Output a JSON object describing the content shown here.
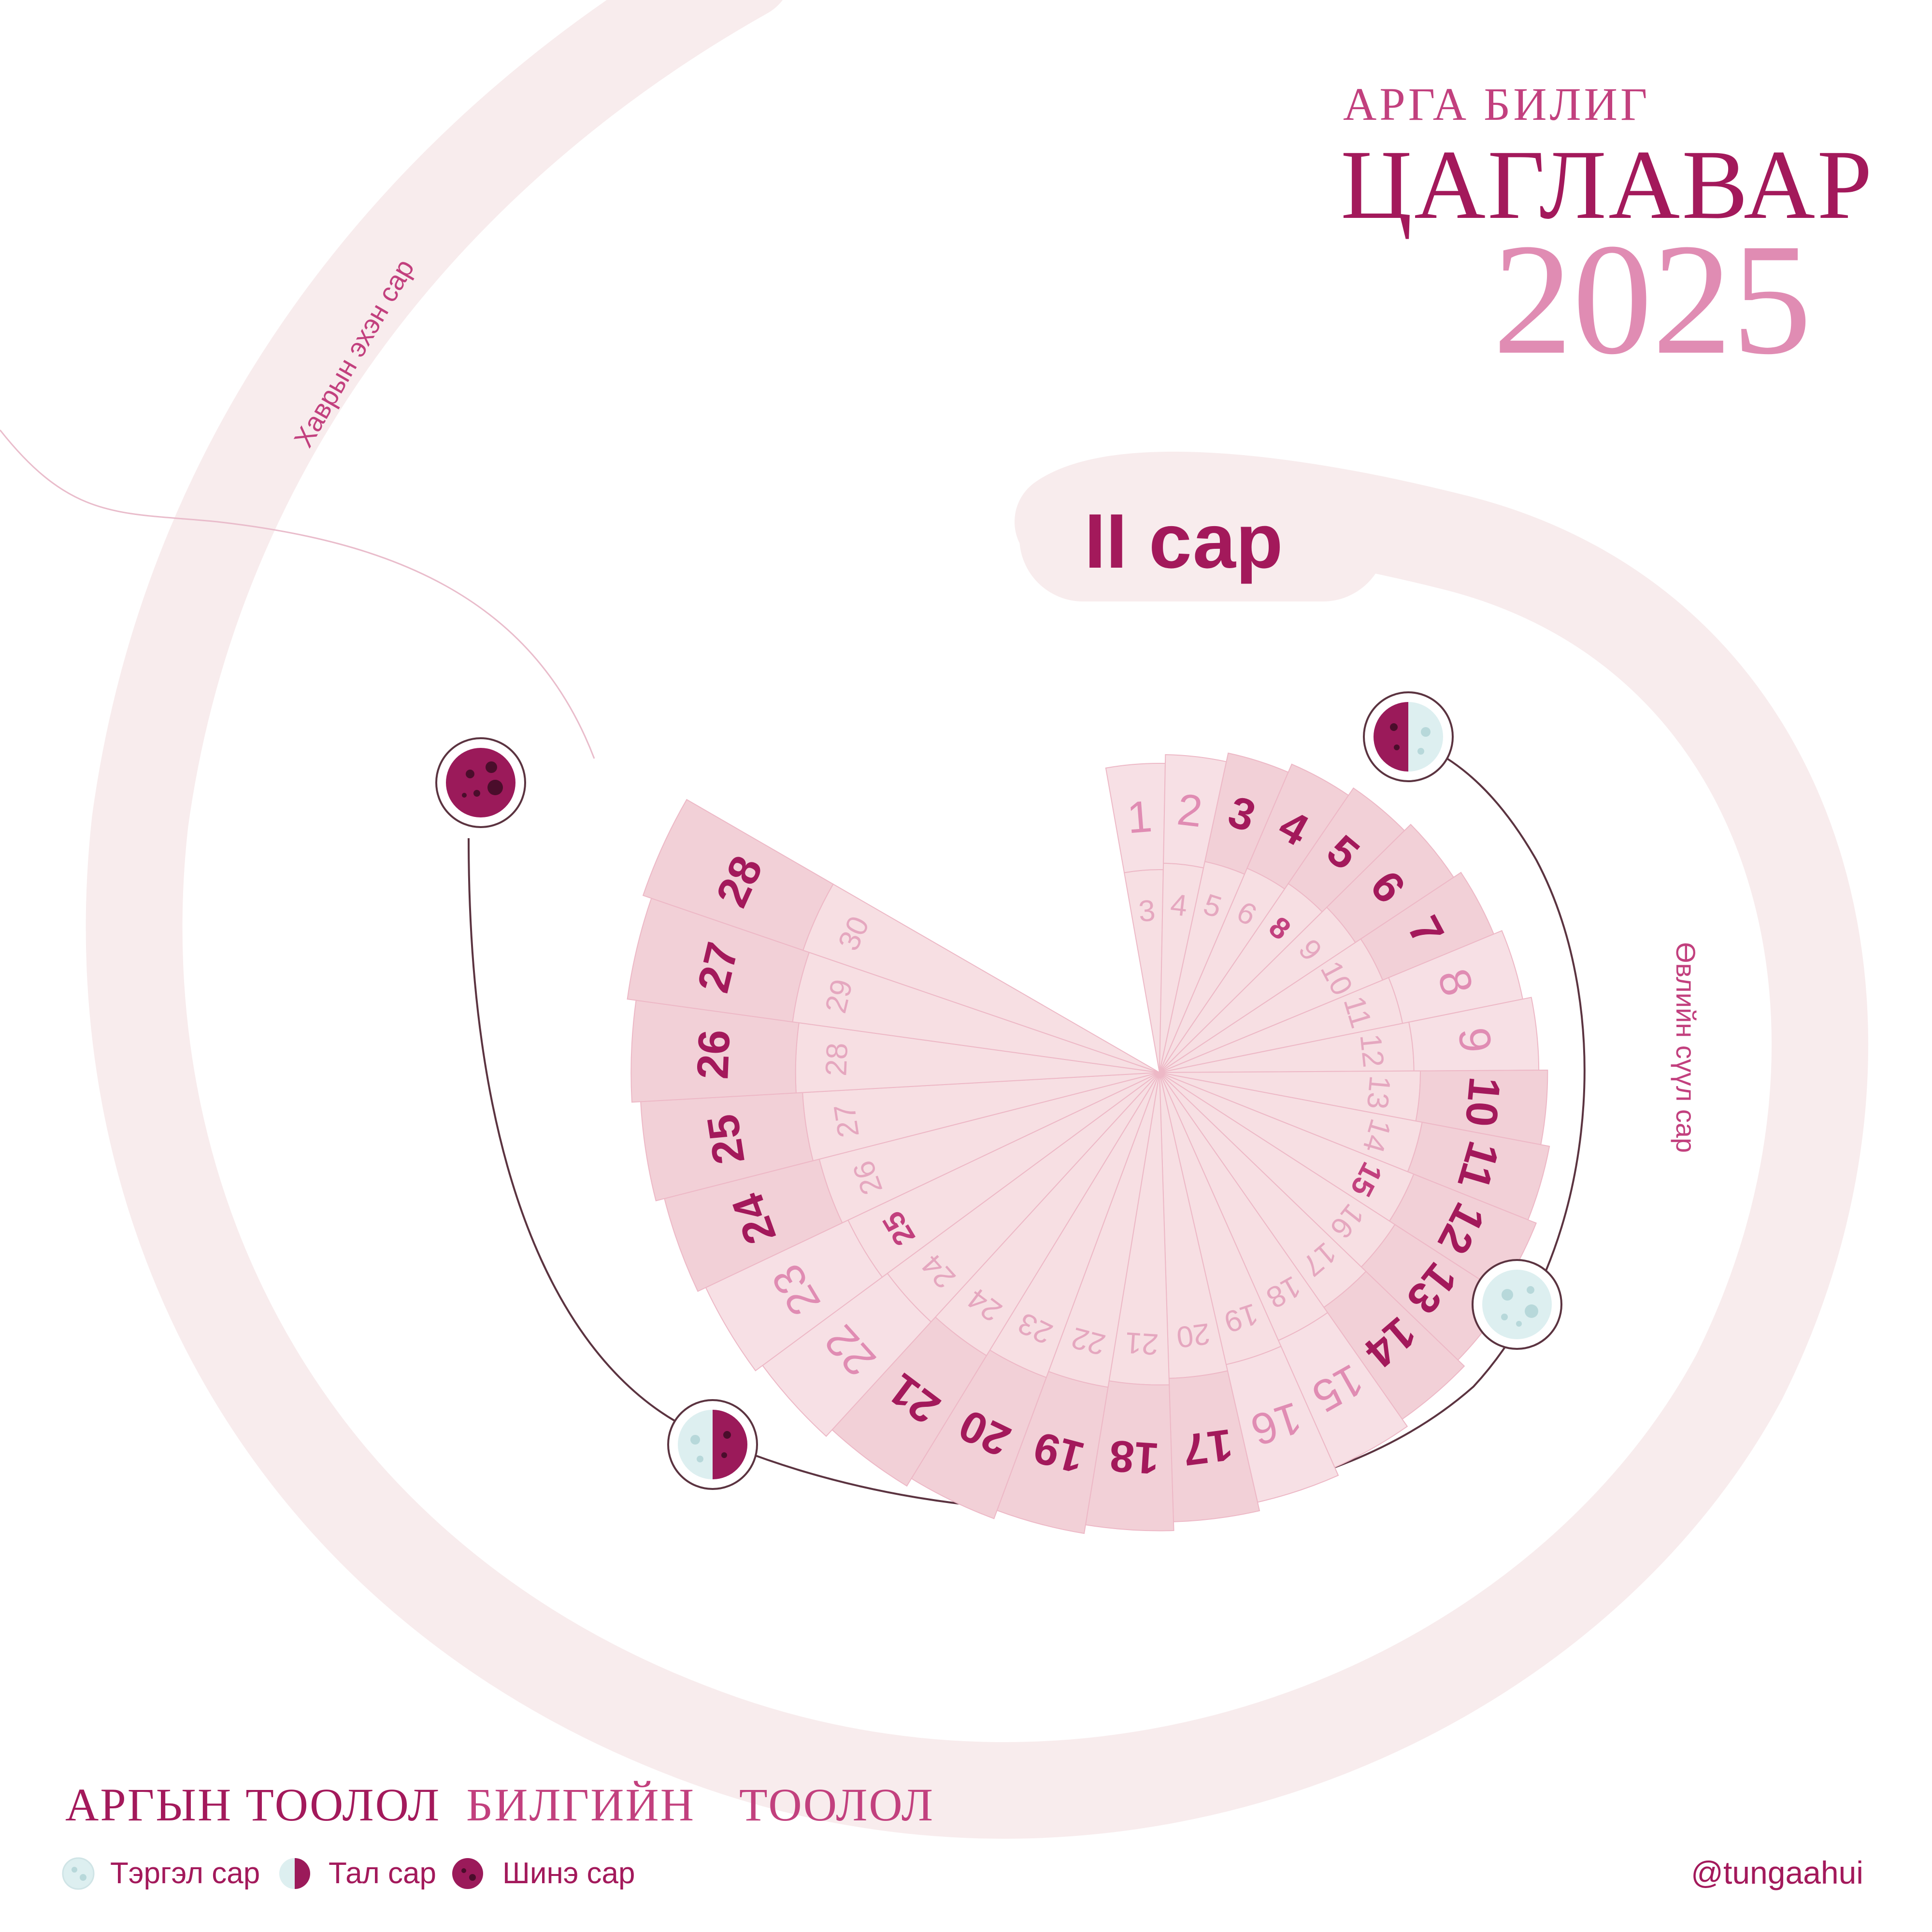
{
  "header": {
    "subtitle": "АРГА БИЛИГ",
    "title": "ЦАГЛАВАР",
    "year": "2025"
  },
  "month": {
    "label": "II сар",
    "previous_month_label": "Хаврын эхэн сар",
    "next_month_label": "Өвлийн сүүл сар"
  },
  "calendar": {
    "outer_days": [
      "1",
      "2",
      "3",
      "4",
      "5",
      "6",
      "7",
      "8",
      "9",
      "10",
      "11",
      "12",
      "13",
      "14",
      "15",
      "16",
      "17",
      "18",
      "19",
      "20",
      "21",
      "22",
      "23",
      "24",
      "25",
      "26",
      "27",
      "28"
    ],
    "outer_bold": [
      false,
      false,
      true,
      true,
      true,
      true,
      true,
      false,
      false,
      true,
      true,
      true,
      true,
      true,
      false,
      false,
      true,
      true,
      true,
      true,
      true,
      false,
      false,
      true,
      true,
      true,
      true,
      true
    ],
    "inner_days": [
      "3",
      "4",
      "5",
      "6",
      "8",
      "9",
      "10",
      "11",
      "12",
      "13",
      "14",
      "15",
      "16",
      "17",
      "18",
      "19",
      "20",
      "21",
      "22",
      "23",
      "24",
      "24",
      "25",
      "26",
      "27",
      "28",
      "29",
      "30"
    ],
    "inner_bold": [
      false,
      false,
      false,
      false,
      true,
      false,
      false,
      false,
      false,
      false,
      false,
      true,
      false,
      false,
      false,
      false,
      false,
      false,
      false,
      false,
      false,
      false,
      true,
      false,
      false,
      false,
      false,
      false
    ]
  },
  "moon_phases": [
    {
      "name": "new-moon",
      "icon": "new-moon-icon"
    },
    {
      "name": "first-quarter",
      "icon": "half-moon-icon"
    },
    {
      "name": "full-moon",
      "icon": "full-moon-icon"
    },
    {
      "name": "last-quarter",
      "icon": "half-moon-icon"
    }
  ],
  "footer": {
    "arga_label": "АРГЫН ТООЛОЛ",
    "bilig_label": "БИЛГИЙН",
    "tooloo_label": "ТООЛОЛ",
    "handle": "@tungaahui"
  },
  "legend": [
    {
      "label": "Тэргэл сар",
      "icon": "full-moon-icon"
    },
    {
      "label": "Тал сар",
      "icon": "half-moon-icon"
    },
    {
      "label": "Шинэ сар",
      "icon": "new-moon-icon"
    }
  ],
  "colors": {
    "accent": "#a3195b",
    "accent_light": "#e08cb3",
    "band": "#f8eced",
    "fan_outer": "#f3d1d8",
    "fan_inner": "#f7dfe3",
    "moon_light": "#ddeff0",
    "moon_dark": "#9b1a5a"
  }
}
